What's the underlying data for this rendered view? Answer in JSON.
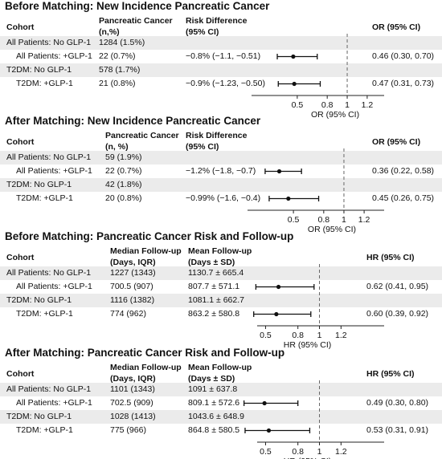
{
  "chart_data": [
    {
      "type": "forest",
      "title": "Before Matching: New Incidence Pancreatic Cancer",
      "headers": [
        "Cohort",
        "Pancreatic Cancer\n(n,%)",
        "Risk Difference\n(95% CI)",
        "OR (95% CI)"
      ],
      "xlabel": "OR (95% CI)",
      "xticks": [
        "0.5",
        "0.8",
        "1",
        "1.2"
      ],
      "xlim": [
        0.2,
        1.3
      ],
      "ref_line": 1,
      "rows": [
        {
          "cohort": "All Patients: No GLP-1",
          "c2": "1284 (1.5%)",
          "c3": "",
          "est": null,
          "lo": null,
          "hi": null,
          "est_text": ""
        },
        {
          "cohort": "All Patients: +GLP-1",
          "c2": "22 (0.7%)",
          "c3": "−0.8% (−1.1, −0.51)",
          "est": 0.46,
          "lo": 0.3,
          "hi": 0.7,
          "est_text": "0.46 (0.30, 0.70)"
        },
        {
          "cohort": "T2DM: No GLP-1",
          "c2": "578 (1.7%)",
          "c3": "",
          "est": null,
          "lo": null,
          "hi": null,
          "est_text": ""
        },
        {
          "cohort": "T2DM: +GLP-1",
          "c2": "21 (0.8%)",
          "c3": "−0.9% (−1.23, −0.50)",
          "est": 0.47,
          "lo": 0.31,
          "hi": 0.73,
          "est_text": "0.47 (0.31, 0.73)"
        }
      ]
    },
    {
      "type": "forest",
      "title": "After Matching: New Incidence Pancreatic Cancer",
      "headers": [
        "Cohort",
        "Pancreatic Cancer\n(n, %)",
        "Risk Difference\n(95% CI)",
        "OR (95% CI)"
      ],
      "xlabel": "OR (95% CI)",
      "xticks": [
        "0.5",
        "0.8",
        "1",
        "1.2"
      ],
      "xlim": [
        0.2,
        1.3
      ],
      "ref_line": 1,
      "rows": [
        {
          "cohort": "All Patients: No GLP-1",
          "c2": "59 (1.9%)",
          "c3": "",
          "est": null,
          "lo": null,
          "hi": null,
          "est_text": ""
        },
        {
          "cohort": "All Patients: +GLP-1",
          "c2": "22 (0.7%)",
          "c3": "−1.2% (−1.8, −0.7)",
          "est": 0.36,
          "lo": 0.22,
          "hi": 0.58,
          "est_text": "0.36 (0.22, 0.58)"
        },
        {
          "cohort": "T2DM: No GLP-1",
          "c2": "42 (1.8%)",
          "c3": "",
          "est": null,
          "lo": null,
          "hi": null,
          "est_text": ""
        },
        {
          "cohort": "T2DM: +GLP-1",
          "c2": "20 (0.8%)",
          "c3": "−0.99% (−1.6, −0.4)",
          "est": 0.45,
          "lo": 0.26,
          "hi": 0.75,
          "est_text": "0.45 (0.26, 0.75)"
        }
      ]
    },
    {
      "type": "forest",
      "title": "Before Matching: Pancreatic Cancer Risk and Follow-up",
      "headers": [
        "Cohort",
        "Median Follow-up\n(Days, IQR)",
        "Mean Follow-up\n(Days ± SD)",
        "HR (95% CI)"
      ],
      "xlabel": "HR (95% CI)",
      "xticks": [
        "0.5",
        "0.8",
        "1",
        "1.2"
      ],
      "xlim": [
        0.2,
        1.3
      ],
      "ref_line": 1,
      "rows": [
        {
          "cohort": "All Patients: No GLP-1",
          "c2": "1227 (1343)",
          "c3": "1130.7 ± 665.4",
          "est": null,
          "lo": null,
          "hi": null,
          "est_text": ""
        },
        {
          "cohort": "All Patients: +GLP-1",
          "c2": "700.5 (907)",
          "c3": "807.7 ± 571.1",
          "est": 0.62,
          "lo": 0.41,
          "hi": 0.95,
          "est_text": "0.62 (0.41, 0.95)"
        },
        {
          "cohort": "T2DM: No GLP-1",
          "c2": "1116 (1382)",
          "c3": "1081.1 ± 662.7",
          "est": null,
          "lo": null,
          "hi": null,
          "est_text": ""
        },
        {
          "cohort": "T2DM: +GLP-1",
          "c2": "774 (962)",
          "c3": "863.2 ± 580.8",
          "est": 0.6,
          "lo": 0.39,
          "hi": 0.92,
          "est_text": "0.60 (0.39, 0.92)"
        }
      ]
    },
    {
      "type": "forest",
      "title": "After Matching: Pancreatic Cancer Risk and Follow-up",
      "headers": [
        "Cohort",
        "Median Follow-up\n(Days, IQR)",
        "Mean Follow-up\n(Days ± SD)",
        "HR (95% CI)"
      ],
      "xlabel": "HR (95% CI)",
      "xticks": [
        "0.5",
        "0.8",
        "1",
        "1.2"
      ],
      "xlim": [
        0.2,
        1.3
      ],
      "ref_line": 1,
      "rows": [
        {
          "cohort": "All Patients: No GLP-1",
          "c2": "1101 (1343)",
          "c3": "1091 ± 637.8",
          "est": null,
          "lo": null,
          "hi": null,
          "est_text": ""
        },
        {
          "cohort": "All Patients: +GLP-1",
          "c2": "702.5 (909)",
          "c3": "809.1 ± 572.6",
          "est": 0.49,
          "lo": 0.3,
          "hi": 0.8,
          "est_text": "0.49 (0.30, 0.80)"
        },
        {
          "cohort": "T2DM: No GLP-1",
          "c2": "1028 (1413)",
          "c3": "1043.6 ± 648.9",
          "est": null,
          "lo": null,
          "hi": null,
          "est_text": ""
        },
        {
          "cohort": "T2DM: +GLP-1",
          "c2": "775 (966)",
          "c3": "864.8 ± 580.5",
          "est": 0.53,
          "lo": 0.31,
          "hi": 0.91,
          "est_text": "0.53 (0.31, 0.91)"
        }
      ]
    }
  ]
}
